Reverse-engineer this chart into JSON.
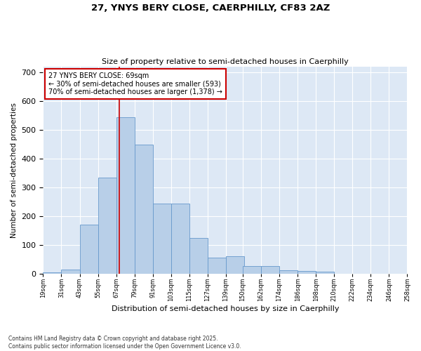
{
  "title_line1": "27, YNYS BERY CLOSE, CAERPHILLY, CF83 2AZ",
  "title_line2": "Size of property relative to semi-detached houses in Caerphilly",
  "xlabel": "Distribution of semi-detached houses by size in Caerphilly",
  "ylabel": "Number of semi-detached properties",
  "footnote": "Contains HM Land Registry data © Crown copyright and database right 2025.\nContains public sector information licensed under the Open Government Licence v3.0.",
  "bin_labels": [
    "19sqm",
    "31sqm",
    "43sqm",
    "55sqm",
    "67sqm",
    "79sqm",
    "91sqm",
    "103sqm",
    "115sqm",
    "127sqm",
    "139sqm",
    "150sqm",
    "162sqm",
    "174sqm",
    "186sqm",
    "198sqm",
    "210sqm",
    "222sqm",
    "234sqm",
    "246sqm",
    "258sqm"
  ],
  "bin_lefts": [
    19,
    31,
    43,
    55,
    67,
    79,
    91,
    103,
    115,
    127,
    139,
    150,
    162,
    174,
    186,
    198,
    210,
    222,
    234,
    246
  ],
  "bin_width": 12,
  "bar_heights": [
    5,
    15,
    170,
    335,
    545,
    450,
    245,
    245,
    125,
    55,
    60,
    28,
    28,
    12,
    10,
    8,
    0,
    0,
    0,
    0
  ],
  "bar_color": "#b8cfe8",
  "bar_edge_color": "#6699cc",
  "property_value": 69,
  "annotation_title": "27 YNYS BERY CLOSE: 69sqm",
  "annotation_line2": "← 30% of semi-detached houses are smaller (593)",
  "annotation_line3": "70% of semi-detached houses are larger (1,378) →",
  "annotation_box_color": "#ffffff",
  "annotation_box_edge_color": "#cc0000",
  "vline_color": "#cc0000",
  "background_color": "#dde8f5",
  "ylim": [
    0,
    720
  ],
  "yticks": [
    0,
    100,
    200,
    300,
    400,
    500,
    600,
    700
  ],
  "xlim_left": 19,
  "xlim_right": 258
}
